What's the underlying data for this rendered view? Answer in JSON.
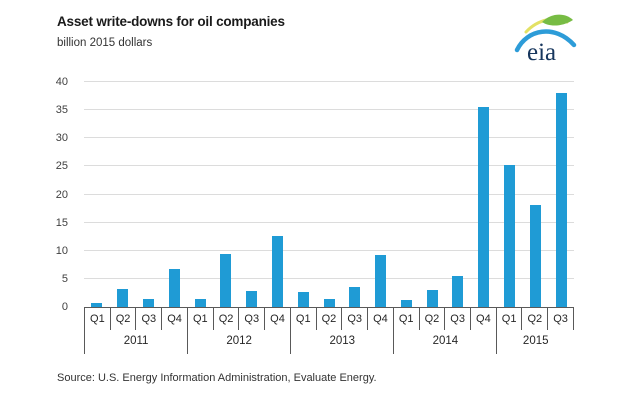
{
  "header": {
    "title": "Asset write-downs for oil companies",
    "subtitle": "billion 2015 dollars",
    "logo_text": "eia"
  },
  "source_line": "Source:  U.S. Energy Information Administration, Evaluate Energy.",
  "colors": {
    "bar": "#1F9BD5",
    "gridline": "#DCDCDC",
    "axis_line": "#595959",
    "title_text": "#1A1A1A",
    "label_text": "#404040",
    "logo_navy": "#17365D",
    "logo_green": "#77BC44",
    "logo_yellow": "#E3E164",
    "logo_blue": "#2D9CD8"
  },
  "chart_data": {
    "type": "bar",
    "title": "Asset write-downs for oil companies",
    "ylabel": "billion 2015 dollars",
    "xlabel": "",
    "ylim": [
      0,
      40
    ],
    "yticks": [
      0,
      5,
      10,
      15,
      20,
      25,
      30,
      35,
      40
    ],
    "grid": true,
    "legend_position": "none",
    "bar_color": "#1F9BD5",
    "years": [
      {
        "year": "2011",
        "quarters": [
          "Q1",
          "Q2",
          "Q3",
          "Q4"
        ],
        "values": [
          0.8,
          3.2,
          1.4,
          6.8
        ]
      },
      {
        "year": "2012",
        "quarters": [
          "Q1",
          "Q2",
          "Q3",
          "Q4"
        ],
        "values": [
          1.5,
          9.5,
          2.8,
          12.6
        ]
      },
      {
        "year": "2013",
        "quarters": [
          "Q1",
          "Q2",
          "Q3",
          "Q4"
        ],
        "values": [
          2.6,
          1.4,
          3.5,
          9.2
        ]
      },
      {
        "year": "2014",
        "quarters": [
          "Q1",
          "Q2",
          "Q3",
          "Q4"
        ],
        "values": [
          1.2,
          3.0,
          5.5,
          35.6
        ]
      },
      {
        "year": "2015",
        "quarters": [
          "Q1",
          "Q2",
          "Q3"
        ],
        "values": [
          25.2,
          18.1,
          38.0
        ]
      }
    ]
  }
}
